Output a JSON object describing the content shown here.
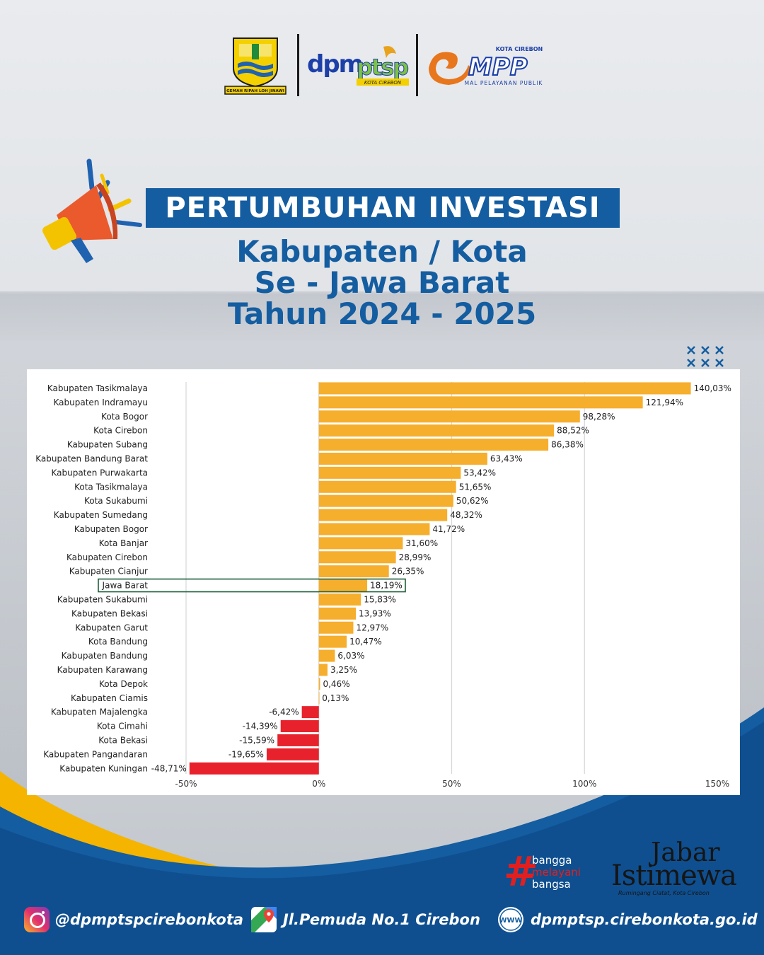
{
  "header": {
    "crest_motto": "GEMAH RIPAH LOH JINAWI",
    "dpm_text": "dpm",
    "ptsp_text": "ptsp",
    "dpm_subtitle": "KOTA CIREBON",
    "mpp_kota": "KOTA CIREBON",
    "mpp_text": "MPP",
    "mpp_subtitle": "MAL PELAYANAN PUBLIK"
  },
  "title": {
    "main": "PERTUMBUHAN INVESTASI",
    "line1": "Kabupaten / Kota",
    "line2": "Se - Jawa Barat",
    "line3": "Tahun 2024 - 2025"
  },
  "chart_data": {
    "type": "bar",
    "orientation": "horizontal",
    "title": "",
    "xlabel": "",
    "ylabel": "",
    "xlim": [
      -50,
      150
    ],
    "x_ticks": [
      -50,
      0,
      50,
      100,
      150
    ],
    "x_tick_labels": [
      "-50%",
      "0%",
      "50%",
      "100%",
      "150%"
    ],
    "grid": true,
    "highlighted_category": "Jawa Barat",
    "positive_color": "#f6ae2d",
    "negative_color": "#e8222c",
    "highlight_border_color": "#1f5f3a",
    "categories": [
      "Kabupaten Tasikmalaya",
      "Kabupaten Indramayu",
      "Kota Bogor",
      "Kota Cirebon",
      "Kabupaten Subang",
      "Kabupaten Bandung Barat",
      "Kabupaten Purwakarta",
      "Kota Tasikmalaya",
      "Kota Sukabumi",
      "Kabupaten Sumedang",
      "Kabupaten Bogor",
      "Kota Banjar",
      "Kabupaten Cirebon",
      "Kabupaten Cianjur",
      "Jawa Barat",
      "Kabupaten Sukabumi",
      "Kabupaten Bekasi",
      "Kabupaten Garut",
      "Kota Bandung",
      "Kabupaten Bandung",
      "Kabupaten Karawang",
      "Kota Depok",
      "Kabupaten Ciamis",
      "Kabupaten Majalengka",
      "Kota Cimahi",
      "Kota Bekasi",
      "Kabupaten Pangandaran",
      "Kabupaten Kuningan"
    ],
    "values": [
      140.03,
      121.94,
      98.28,
      88.52,
      86.38,
      63.43,
      53.42,
      51.65,
      50.62,
      48.32,
      41.72,
      31.6,
      28.99,
      26.35,
      18.19,
      15.83,
      13.93,
      12.97,
      10.47,
      6.03,
      3.25,
      0.46,
      0.13,
      -6.42,
      -14.39,
      -15.59,
      -19.65,
      -48.71
    ],
    "value_labels": [
      "140,03%",
      "121,94%",
      "98,28%",
      "88,52%",
      "86,38%",
      "63,43%",
      "53,42%",
      "51,65%",
      "50,62%",
      "48,32%",
      "41,72%",
      "31,60%",
      "28,99%",
      "26,35%",
      "18,19%",
      "15,83%",
      "13,93%",
      "12,97%",
      "10,47%",
      "6,03%",
      "3,25%",
      "0,46%",
      "0,13%",
      "-6,42%",
      "-14,39%",
      "-15,59%",
      "-19,65%",
      "-48,71%"
    ]
  },
  "badges": {
    "bangga_hash": "#",
    "bangga_1": "bangga",
    "bangga_2": "melayani",
    "bangga_3": "bangsa",
    "jabar_1": "Jabar",
    "jabar_2": "Istimewa",
    "jabar_3": "Rumingang Ciatat, Kota Cirebon"
  },
  "footer": {
    "instagram": "@dpmptspcirebonkota",
    "address": "Jl.Pemuda No.1 Cirebon",
    "website": "dpmptsp.cirebonkota.go.id",
    "www_label": "WWW"
  }
}
